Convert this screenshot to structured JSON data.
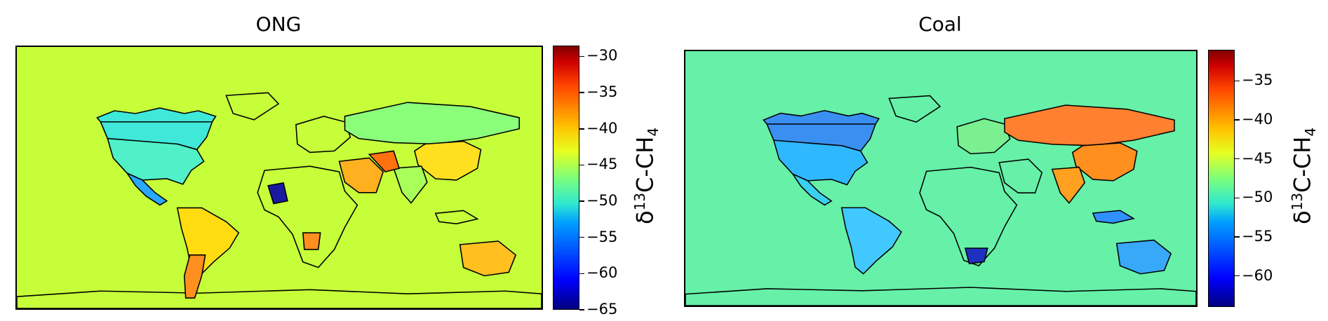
{
  "panels": [
    {
      "title": "ONG",
      "background_color": "#c6ff3a",
      "colorbar": {
        "ticks": [
          "−30",
          "−35",
          "−40",
          "−45",
          "−50",
          "−55",
          "−60",
          "−65"
        ],
        "tick_values": [
          -30,
          -35,
          -40,
          -45,
          -50,
          -55,
          -60,
          -65
        ],
        "range": [
          -65,
          -28.5
        ],
        "label_base": "δ",
        "label_sup": "13",
        "label_mid": "C-CH",
        "label_sub": "4"
      },
      "regions": [
        {
          "name": "canada",
          "value": -51,
          "color": "#3fe8d8"
        },
        {
          "name": "usa",
          "value": -50,
          "color": "#50f0c8"
        },
        {
          "name": "mexico",
          "value": -55,
          "color": "#2aa8ff"
        },
        {
          "name": "south-america",
          "value": -43,
          "color": "#ffdc10"
        },
        {
          "name": "argentina",
          "value": -37,
          "color": "#ff9020"
        },
        {
          "name": "africa",
          "value": -46,
          "color": "#c6ff3a"
        },
        {
          "name": "mauritania",
          "value": -63,
          "color": "#1a1aa0"
        },
        {
          "name": "angola",
          "value": -37,
          "color": "#ff9020"
        },
        {
          "name": "russia",
          "value": -48,
          "color": "#8bff7a"
        },
        {
          "name": "china",
          "value": -42,
          "color": "#ffe020"
        },
        {
          "name": "middle-east",
          "value": -40,
          "color": "#ffb020"
        },
        {
          "name": "iran",
          "value": -35,
          "color": "#ff7010"
        },
        {
          "name": "india",
          "value": -47,
          "color": "#a8ff5a"
        },
        {
          "name": "australia",
          "value": -40,
          "color": "#ffc020"
        }
      ]
    },
    {
      "title": "Coal",
      "background_color": "#66f0a8",
      "colorbar": {
        "ticks": [
          "−35",
          "−40",
          "−45",
          "−50",
          "−55",
          "−60"
        ],
        "tick_values": [
          -35,
          -40,
          -45,
          -50,
          -55,
          -60
        ],
        "range": [
          -64,
          -31
        ],
        "label_base": "δ",
        "label_sup": "13",
        "label_mid": "C-CH",
        "label_sub": "4"
      },
      "regions": [
        {
          "name": "canada",
          "value": -55,
          "color": "#3a90f0"
        },
        {
          "name": "usa",
          "value": -54,
          "color": "#30b8ff"
        },
        {
          "name": "mexico",
          "value": -53,
          "color": "#3ad0f0"
        },
        {
          "name": "south-america",
          "value": -53,
          "color": "#40c8ff"
        },
        {
          "name": "africa",
          "value": -50,
          "color": "#66f0a8"
        },
        {
          "name": "south-africa",
          "value": -60,
          "color": "#2030c0"
        },
        {
          "name": "russia",
          "value": -38,
          "color": "#ff8030"
        },
        {
          "name": "china",
          "value": -38,
          "color": "#ff9020"
        },
        {
          "name": "india",
          "value": -40,
          "color": "#ffa020"
        },
        {
          "name": "indonesia",
          "value": -56,
          "color": "#3090ff"
        },
        {
          "name": "australia",
          "value": -54,
          "color": "#38a8f8"
        },
        {
          "name": "europe",
          "value": -48,
          "color": "#7af090"
        }
      ]
    }
  ]
}
